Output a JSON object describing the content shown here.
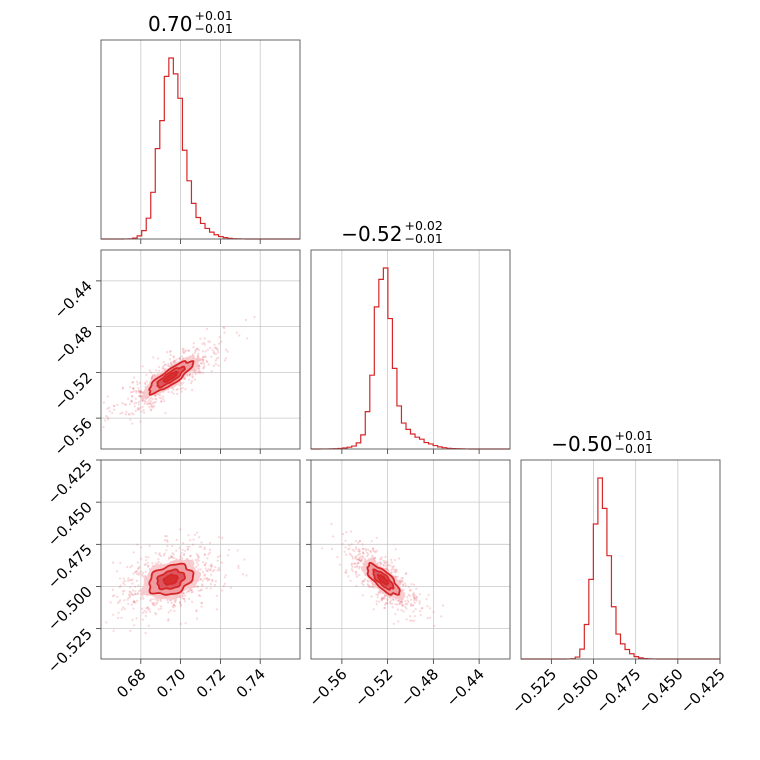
{
  "figure": {
    "colors": {
      "accent": "#d62728",
      "contour_fill_light": "#f7c6c9",
      "contour_fill_mid": "#ee949a",
      "contour_fill_dark": "#d94a52",
      "grid": "#c8c8c8"
    }
  },
  "chart_data": {
    "type": "corner",
    "parameters": [
      {
        "title": {
          "value": "0.70",
          "sup": "+0.01",
          "sub": "−0.01"
        },
        "range": [
          0.66,
          0.76
        ],
        "ticks": [
          0.68,
          0.7,
          0.72,
          0.74
        ],
        "tick_labels": [
          "0.68",
          "0.70",
          "0.72",
          "0.74"
        ],
        "median": 0.7,
        "err_plus": 0.01,
        "err_minus": 0.01,
        "hist_peak": 0.695,
        "hist_width": 0.0055,
        "hist_tail": 0.008
      },
      {
        "title": {
          "value": "−0.52",
          "sup": "+0.02",
          "sub": "−0.01"
        },
        "range": [
          -0.587,
          -0.413
        ],
        "ticks": [
          -0.56,
          -0.52,
          -0.48,
          -0.44
        ],
        "tick_labels": [
          "−0.56",
          "−0.52",
          "−0.48",
          "−0.44"
        ],
        "median": -0.52,
        "err_plus": 0.02,
        "err_minus": 0.01,
        "hist_peak": -0.524,
        "hist_width": 0.007,
        "hist_tail": 0.018
      },
      {
        "title": {
          "value": "−0.50",
          "sup": "+0.01",
          "sub": "−0.01"
        },
        "range": [
          -0.543,
          -0.425
        ],
        "ticks": [
          -0.525,
          -0.5,
          -0.475,
          -0.45,
          -0.425
        ],
        "tick_labels": [
          "−0.525",
          "−0.500",
          "−0.475",
          "−0.450",
          "−0.425"
        ],
        "median": -0.5,
        "err_plus": 0.01,
        "err_minus": 0.01,
        "hist_peak": -0.496,
        "hist_width": 0.0045,
        "hist_tail": 0.007
      }
    ],
    "correlations": [
      {
        "x": 0,
        "y": 1,
        "rho": 0.85
      },
      {
        "x": 0,
        "y": 2,
        "rho": 0.3
      },
      {
        "x": 1,
        "y": 2,
        "rho": -0.75
      }
    ],
    "contour_levels": [
      0.5,
      1.0,
      1.6,
      2.1
    ],
    "grid": true,
    "series_color": "#d62728"
  }
}
